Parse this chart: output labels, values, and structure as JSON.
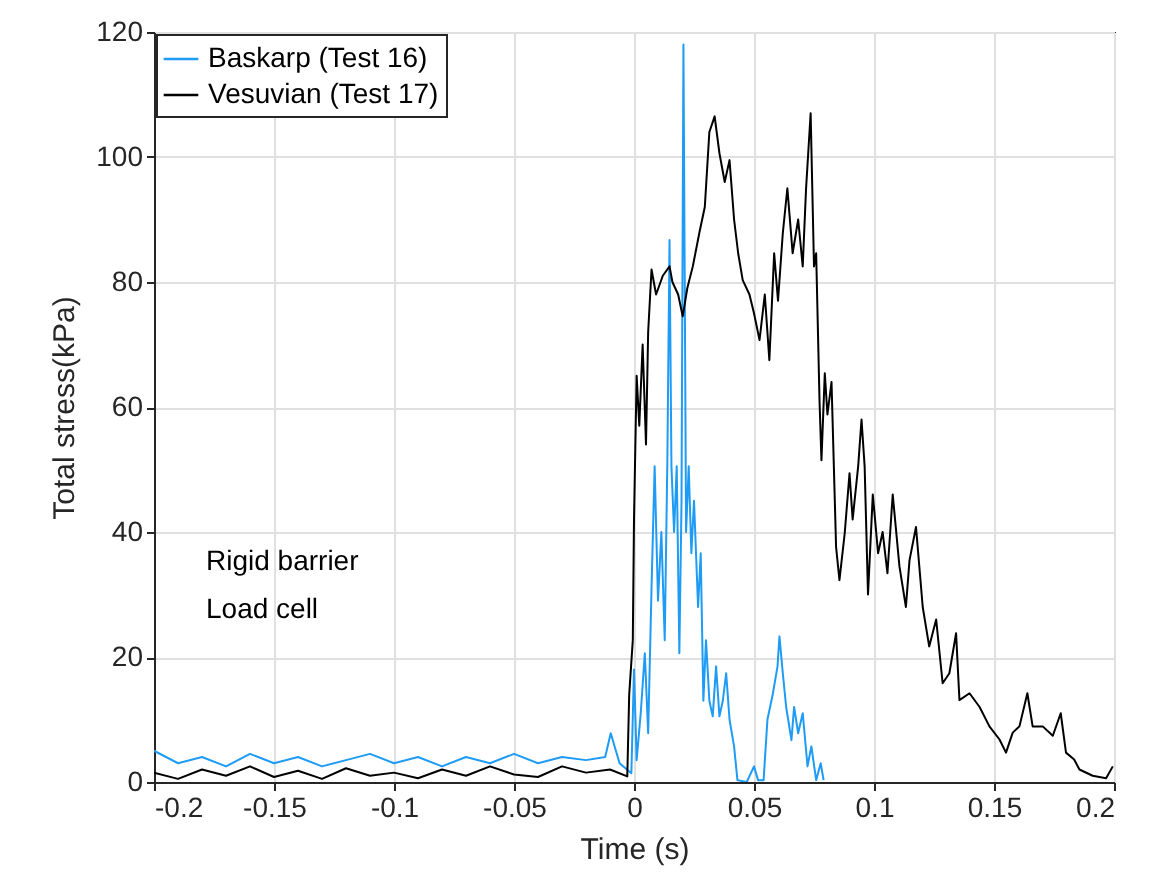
{
  "chart_data": {
    "type": "line",
    "xlabel": "Time (s)",
    "ylabel": "Total stress(kPa)",
    "xlim": [
      -0.2,
      0.2
    ],
    "xticks": [
      -0.2,
      -0.15,
      -0.1,
      -0.05,
      0,
      0.05,
      0.1,
      0.15,
      0.2
    ],
    "ylim": [
      0,
      120
    ],
    "yticks": [
      0,
      20,
      40,
      60,
      80,
      100,
      120
    ],
    "grid": true,
    "legend": "top left",
    "annotations": [
      "Rigid barrier",
      "Load cell"
    ],
    "series": [
      {
        "name": "Baskarp (Test 16)",
        "color": "#1e9bf5",
        "x": [
          -0.2,
          -0.19,
          -0.18,
          -0.17,
          -0.16,
          -0.15,
          -0.14,
          -0.13,
          -0.12,
          -0.11,
          -0.1,
          -0.09,
          -0.08,
          -0.07,
          -0.06,
          -0.05,
          -0.04,
          -0.03,
          -0.02,
          -0.012,
          -0.0097,
          -0.006,
          -0.0011,
          0,
          0.0011,
          0.0028,
          0.0045,
          0.0059,
          0.0073,
          0.0086,
          0.01,
          0.0114,
          0.0128,
          0.0139,
          0.0148,
          0.0156,
          0.0167,
          0.0178,
          0.0189,
          0.0198,
          0.0206,
          0.0217,
          0.0228,
          0.0239,
          0.025,
          0.0267,
          0.0278,
          0.0289,
          0.03,
          0.0314,
          0.0328,
          0.0342,
          0.0356,
          0.037,
          0.0384,
          0.0398,
          0.0417,
          0.0431,
          0.047,
          0.05,
          0.0517,
          0.054,
          0.0556,
          0.0578,
          0.0598,
          0.0606,
          0.062,
          0.0634,
          0.0656,
          0.0667,
          0.0684,
          0.0703,
          0.0723,
          0.0739,
          0.0759,
          0.0778,
          0.079
        ],
        "values": [
          5,
          3,
          4,
          2.5,
          4.5,
          3,
          4,
          2.5,
          3.5,
          4.5,
          3,
          4,
          2.5,
          4,
          3,
          4.5,
          3,
          4,
          3.5,
          4,
          7.8,
          3,
          1.4,
          18,
          3.5,
          11,
          20.6,
          7.8,
          31,
          50.5,
          29,
          40,
          22.7,
          51.5,
          86.7,
          50.5,
          40,
          50.5,
          20.6,
          45,
          118,
          40,
          50.5,
          36.6,
          45,
          28,
          36.6,
          13,
          22.7,
          13,
          10.5,
          18.5,
          10.5,
          13,
          17.4,
          10,
          5.7,
          0.3,
          0,
          2.5,
          0.3,
          0.3,
          10,
          14,
          18.5,
          23.3,
          17.4,
          12,
          6.7,
          12,
          7.8,
          11,
          2.5,
          5.7,
          0.3,
          3,
          0.3
        ]
      },
      {
        "name": "Vesuvian (Test 17)",
        "color": "#000000",
        "x": [
          -0.2,
          -0.19,
          -0.18,
          -0.17,
          -0.16,
          -0.15,
          -0.14,
          -0.13,
          -0.12,
          -0.11,
          -0.1,
          -0.09,
          -0.08,
          -0.07,
          -0.06,
          -0.05,
          -0.04,
          -0.03,
          -0.02,
          -0.01,
          -0.0028,
          -0.002,
          -0.0005,
          0,
          0.0011,
          0.0022,
          0.0036,
          0.005,
          0.0059,
          0.0073,
          0.0092,
          0.012,
          0.0148,
          0.016,
          0.0184,
          0.0203,
          0.0222,
          0.0245,
          0.0273,
          0.0295,
          0.0314,
          0.0336,
          0.0356,
          0.0378,
          0.0398,
          0.0417,
          0.0434,
          0.0453,
          0.0481,
          0.05,
          0.0523,
          0.0545,
          0.0564,
          0.0584,
          0.06,
          0.062,
          0.0639,
          0.0661,
          0.0684,
          0.0703,
          0.0717,
          0.0736,
          0.075,
          0.0759,
          0.0773,
          0.0781,
          0.0795,
          0.0806,
          0.0823,
          0.0842,
          0.0856,
          0.0878,
          0.0898,
          0.0911,
          0.0934,
          0.0948,
          0.0961,
          0.0975,
          0.0995,
          0.1017,
          0.1036,
          0.1056,
          0.1078,
          0.1106,
          0.1133,
          0.1148,
          0.1175,
          0.1203,
          0.123,
          0.1259,
          0.1286,
          0.1314,
          0.1342,
          0.1356,
          0.1398,
          0.144,
          0.1481,
          0.1523,
          0.155,
          0.1578,
          0.1606,
          0.1639,
          0.1661,
          0.1703,
          0.1745,
          0.1778,
          0.18,
          0.1834,
          0.1856,
          0.1911,
          0.1967,
          0.1995
        ],
        "values": [
          1.5,
          0.5,
          2,
          1,
          2.5,
          0.8,
          1.8,
          0.5,
          2.2,
          1,
          1.5,
          0.6,
          2,
          1,
          2.5,
          1.2,
          0.8,
          2.5,
          1.5,
          2,
          0.9,
          14,
          22.7,
          42,
          65,
          57,
          70,
          54,
          72,
          82,
          78,
          81,
          82.5,
          80,
          78,
          74.5,
          79,
          82.5,
          88,
          92,
          104,
          106.5,
          100.6,
          96,
          99.5,
          90,
          84.6,
          80.3,
          78,
          75,
          70.7,
          78,
          67.5,
          84.6,
          77,
          87.8,
          95,
          84.6,
          90,
          82.5,
          95,
          107,
          82.5,
          84.6,
          61,
          51.5,
          65.4,
          58.8,
          64,
          37.6,
          32.3,
          39.8,
          49.4,
          42,
          50.5,
          58,
          50.5,
          30,
          46,
          36.6,
          40,
          33.4,
          46,
          34.5,
          28,
          35.5,
          40.8,
          28,
          21.7,
          26,
          15.8,
          17.4,
          23.8,
          13.1,
          14.2,
          12,
          8.9,
          6.8,
          4.7,
          7.9,
          8.9,
          14.2,
          8.9,
          8.9,
          7.4,
          11,
          4.7,
          3.6,
          2,
          1,
          0.6,
          2.5
        ]
      }
    ]
  }
}
